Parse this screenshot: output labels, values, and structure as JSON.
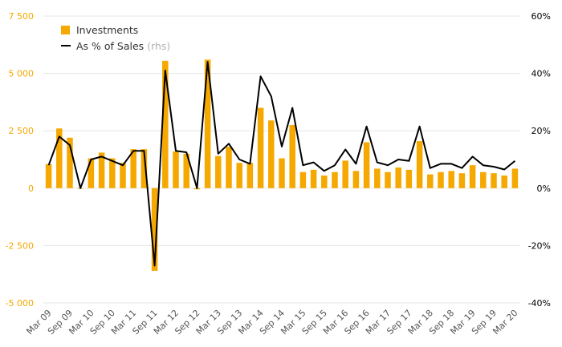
{
  "chart_data": {
    "type": "bar+line",
    "categories": [
      "Mar 09",
      "Jun 09",
      "Sep 09",
      "Dec 09",
      "Mar 10",
      "Jun 10",
      "Sep 10",
      "Dec 10",
      "Mar 11",
      "Jun 11",
      "Sep 11",
      "Dec 11",
      "Mar 12",
      "Jun 12",
      "Sep 12",
      "Dec 12",
      "Mar 13",
      "Jun 13",
      "Sep 13",
      "Dec 13",
      "Mar 14",
      "Jun 14",
      "Sep 14",
      "Dec 14",
      "Mar 15",
      "Jun 15",
      "Sep 15",
      "Dec 15",
      "Mar 16",
      "Jun 16",
      "Sep 16",
      "Dec 16",
      "Mar 17",
      "Jun 17",
      "Sep 17",
      "Dec 17",
      "Mar 18",
      "Jun 18",
      "Sep 18",
      "Dec 18",
      "Mar 19",
      "Jun 19",
      "Sep 19",
      "Dec 19",
      "Mar 20"
    ],
    "x_tick_labels": [
      "Mar 09",
      "Sep 09",
      "Mar 10",
      "Sep 10",
      "Mar 11",
      "Sep 11",
      "Mar 12",
      "Sep 12",
      "Mar 13",
      "Sep 13",
      "Mar 14",
      "Sep 14",
      "Mar 15",
      "Sep 15",
      "Mar 16",
      "Sep 16",
      "Mar 17",
      "Sep 17",
      "Mar 18",
      "Sep 18",
      "Mar 19",
      "Sep 19",
      "Mar 20"
    ],
    "series": [
      {
        "name": "Investments",
        "axis": "left",
        "chart_type": "bar",
        "color": "#f5a800",
        "values": [
          1050,
          2600,
          2200,
          0,
          1300,
          1550,
          1300,
          1100,
          1700,
          1700,
          -3600,
          5550,
          1600,
          1500,
          -50,
          5600,
          1400,
          1800,
          1100,
          1100,
          3500,
          2950,
          1300,
          2750,
          700,
          800,
          550,
          700,
          1200,
          750,
          2000,
          850,
          700,
          900,
          800,
          2050,
          600,
          700,
          750,
          650,
          1000,
          700,
          650,
          550,
          850
        ]
      },
      {
        "name": "As % of Sales",
        "note": "(rhs)",
        "axis": "right",
        "chart_type": "line",
        "color": "#000000",
        "values": [
          8,
          18,
          15,
          0,
          10,
          11,
          9.5,
          8,
          13,
          13,
          -27,
          41,
          13,
          12.5,
          0,
          44,
          12,
          15.5,
          10,
          8.5,
          39,
          32,
          14.5,
          28,
          8,
          9,
          6,
          8,
          13.5,
          8.5,
          21.5,
          9,
          8,
          10,
          9.5,
          21.5,
          7,
          8.5,
          8.5,
          7,
          11,
          8,
          7.5,
          6.5,
          9.5
        ]
      }
    ],
    "y_left": {
      "lim": [
        -5000,
        7500
      ],
      "ticks": [
        -5000,
        -2500,
        0,
        2500,
        5000,
        7500
      ],
      "tick_labels": [
        "-5 000",
        "-2 500",
        "0",
        "2 500",
        "5 000",
        "7 500"
      ]
    },
    "y_right": {
      "lim": [
        -40,
        60
      ],
      "ticks": [
        -40,
        -20,
        0,
        20,
        40,
        60
      ],
      "tick_labels": [
        "-40%",
        "-20%",
        "0%",
        "20%",
        "40%",
        "60%"
      ]
    },
    "grid": true,
    "legend": "top-left"
  },
  "colors": {
    "bar": "#f5a800",
    "line": "#000000",
    "left_tick": "#f5a800",
    "right_tick": "#000000",
    "grid": "#e6e6e6",
    "x_tick": "#555555"
  }
}
